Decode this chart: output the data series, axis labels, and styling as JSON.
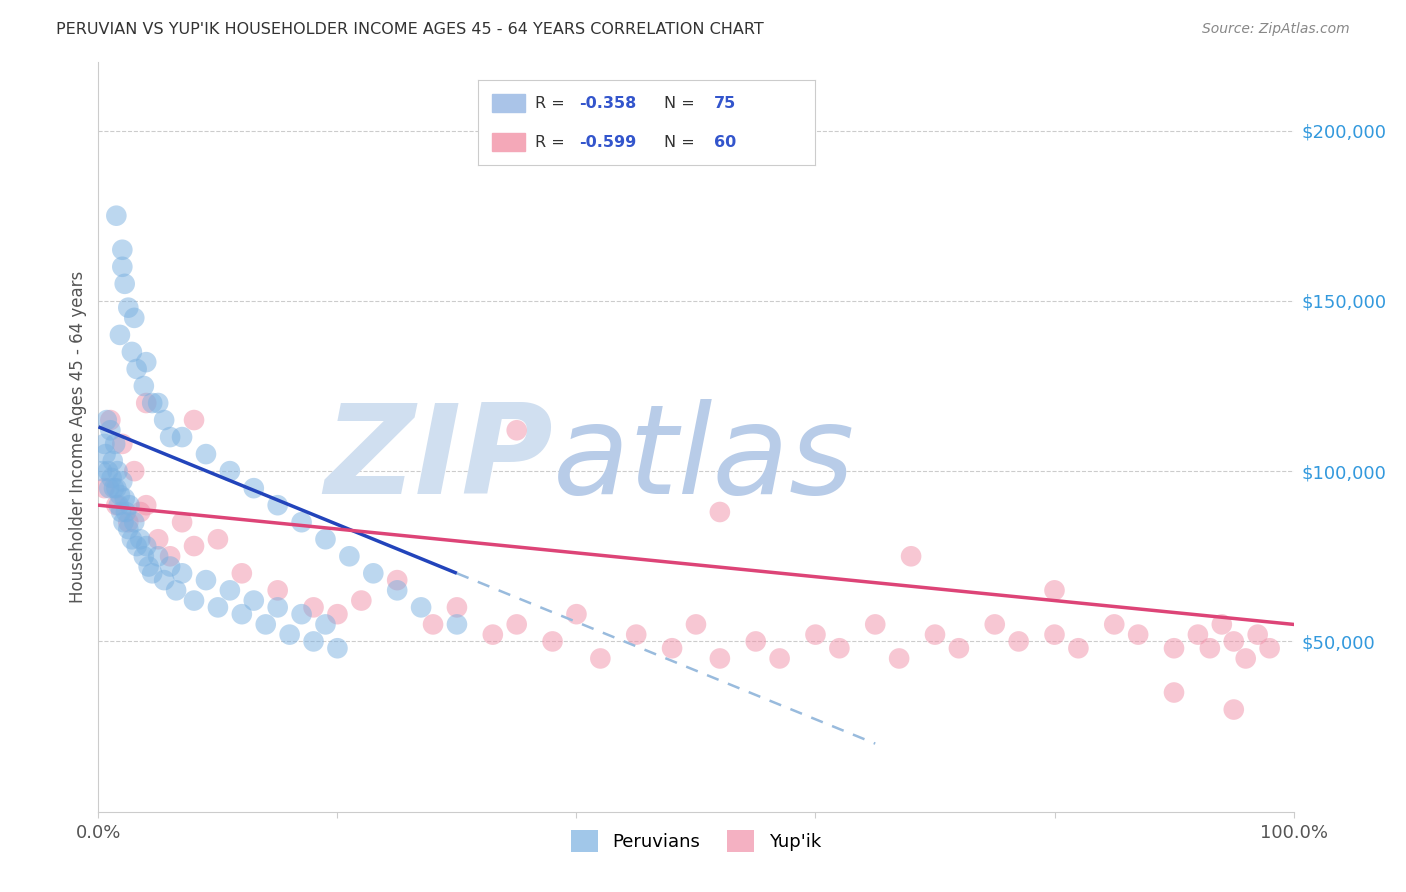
{
  "title": "PERUVIAN VS YUP'IK HOUSEHOLDER INCOME AGES 45 - 64 YEARS CORRELATION CHART",
  "source": "Source: ZipAtlas.com",
  "ylabel": "Householder Income Ages 45 - 64 years",
  "ytick_labels": [
    "$50,000",
    "$100,000",
    "$150,000",
    "$200,000"
  ],
  "ytick_values": [
    50000,
    100000,
    150000,
    200000
  ],
  "legend_label1": "Peruvians",
  "legend_label2": "Yup'ik",
  "peruvian_color": "#7ab0e0",
  "yupik_color": "#f090a8",
  "peruvian_line_color": "#2244bb",
  "yupik_line_color": "#dd4477",
  "peruvian_dash_color": "#99bbdd",
  "watermark_zip": "ZIP",
  "watermark_atlas": "atlas",
  "watermark_color_zip": "#d0dff0",
  "watermark_color_atlas": "#b8cce8",
  "R_peruvian": "-0.358",
  "N_peruvian": "75",
  "R_yupik": "-0.599",
  "N_yupik": "60",
  "legend_r_color": "#3355cc",
  "legend_text_color": "#333333",
  "peruvian_x": [
    0.3,
    0.5,
    0.6,
    0.7,
    0.8,
    0.9,
    1.0,
    1.1,
    1.2,
    1.3,
    1.4,
    1.5,
    1.6,
    1.7,
    1.8,
    1.9,
    2.0,
    2.1,
    2.2,
    2.3,
    2.5,
    2.6,
    2.8,
    3.0,
    3.2,
    3.5,
    3.8,
    4.0,
    4.2,
    4.5,
    5.0,
    5.5,
    6.0,
    6.5,
    7.0,
    8.0,
    9.0,
    10.0,
    11.0,
    12.0,
    13.0,
    14.0,
    15.0,
    16.0,
    17.0,
    18.0,
    19.0,
    20.0,
    2.0,
    2.2,
    2.5,
    1.8,
    2.8,
    3.2,
    3.8,
    4.5,
    5.5,
    7.0,
    9.0,
    11.0,
    13.0,
    15.0,
    17.0,
    19.0,
    21.0,
    23.0,
    25.0,
    27.0,
    30.0,
    1.5,
    2.0,
    3.0,
    4.0,
    5.0,
    6.0
  ],
  "peruvian_y": [
    100000,
    108000,
    105000,
    115000,
    100000,
    95000,
    112000,
    98000,
    103000,
    95000,
    108000,
    95000,
    100000,
    90000,
    93000,
    88000,
    97000,
    85000,
    92000,
    88000,
    83000,
    90000,
    80000,
    85000,
    78000,
    80000,
    75000,
    78000,
    72000,
    70000,
    75000,
    68000,
    72000,
    65000,
    70000,
    62000,
    68000,
    60000,
    65000,
    58000,
    62000,
    55000,
    60000,
    52000,
    58000,
    50000,
    55000,
    48000,
    160000,
    155000,
    148000,
    140000,
    135000,
    130000,
    125000,
    120000,
    115000,
    110000,
    105000,
    100000,
    95000,
    90000,
    85000,
    80000,
    75000,
    70000,
    65000,
    60000,
    55000,
    175000,
    165000,
    145000,
    132000,
    120000,
    110000
  ],
  "yupik_x": [
    0.5,
    1.0,
    1.5,
    2.0,
    2.5,
    3.0,
    3.5,
    4.0,
    5.0,
    6.0,
    7.0,
    8.0,
    10.0,
    12.0,
    15.0,
    18.0,
    20.0,
    22.0,
    25.0,
    28.0,
    30.0,
    33.0,
    35.0,
    38.0,
    40.0,
    42.0,
    45.0,
    48.0,
    50.0,
    52.0,
    55.0,
    57.0,
    60.0,
    62.0,
    65.0,
    67.0,
    70.0,
    72.0,
    75.0,
    77.0,
    80.0,
    82.0,
    85.0,
    87.0,
    90.0,
    92.0,
    93.0,
    94.0,
    95.0,
    96.0,
    97.0,
    98.0,
    4.0,
    8.0,
    35.0,
    52.0,
    68.0,
    80.0,
    90.0,
    95.0
  ],
  "yupik_y": [
    95000,
    115000,
    90000,
    108000,
    85000,
    100000,
    88000,
    90000,
    80000,
    75000,
    85000,
    78000,
    80000,
    70000,
    65000,
    60000,
    58000,
    62000,
    68000,
    55000,
    60000,
    52000,
    55000,
    50000,
    58000,
    45000,
    52000,
    48000,
    55000,
    45000,
    50000,
    45000,
    52000,
    48000,
    55000,
    45000,
    52000,
    48000,
    55000,
    50000,
    52000,
    48000,
    55000,
    52000,
    48000,
    52000,
    48000,
    55000,
    50000,
    45000,
    52000,
    48000,
    120000,
    115000,
    112000,
    88000,
    75000,
    65000,
    35000,
    30000
  ],
  "xlim": [
    0,
    100
  ],
  "ylim": [
    0,
    220000
  ],
  "blue_line_x0": 0,
  "blue_line_x1": 30,
  "blue_line_y0": 113000,
  "blue_line_y1": 70000,
  "blue_dash_x0": 30,
  "blue_dash_x1": 65,
  "blue_dash_y0": 70000,
  "blue_dash_y1": 20000,
  "pink_line_x0": 0,
  "pink_line_x1": 100,
  "pink_line_y0": 90000,
  "pink_line_y1": 55000
}
